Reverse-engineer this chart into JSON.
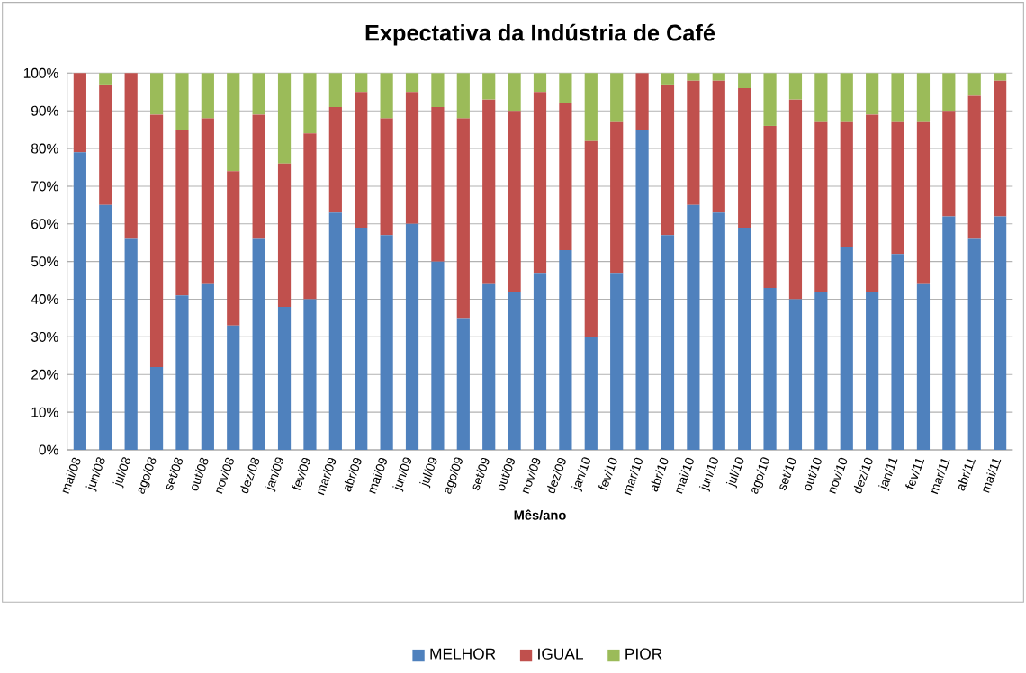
{
  "chart_data": {
    "type": "bar",
    "stacked": true,
    "title": "Expectativa da Indústria de Café",
    "xlabel": "Mês/ano",
    "categories": [
      "mai/08",
      "jun/08",
      "jul/08",
      "ago/08",
      "set/08",
      "out/08",
      "nov/08",
      "dez/08",
      "jan/09",
      "fev/09",
      "mar/09",
      "abr/09",
      "mai/09",
      "jun/09",
      "jul/09",
      "ago/09",
      "set/09",
      "out/09",
      "nov/09",
      "dez/09",
      "jan/10",
      "fev/10",
      "mar/10",
      "abr/10",
      "mai/10",
      "jun/10",
      "jul/10",
      "ago/10",
      "set/10",
      "out/10",
      "nov/10",
      "dez/10",
      "jan/11",
      "fev/11",
      "mar/11",
      "abr/11",
      "mai/11"
    ],
    "series": [
      {
        "name": "MELHOR",
        "color": "#4f81bd",
        "values": [
          79,
          65,
          56,
          22,
          41,
          44,
          33,
          56,
          38,
          40,
          63,
          59,
          57,
          60,
          50,
          35,
          44,
          42,
          47,
          53,
          30,
          47,
          85,
          57,
          65,
          63,
          59,
          43,
          40,
          42,
          54,
          42,
          52,
          44,
          62,
          56,
          62
        ]
      },
      {
        "name": "IGUAL",
        "color": "#c0504d",
        "values": [
          21,
          32,
          44,
          67,
          44,
          44,
          41,
          33,
          38,
          44,
          28,
          36,
          31,
          35,
          41,
          53,
          49,
          48,
          48,
          39,
          52,
          40,
          15,
          40,
          33,
          35,
          37,
          43,
          53,
          45,
          33,
          47,
          35,
          43,
          28,
          38,
          36
        ]
      },
      {
        "name": "PIOR",
        "color": "#9bbb59",
        "values": [
          0,
          3,
          0,
          11,
          15,
          12,
          26,
          11,
          24,
          16,
          9,
          5,
          12,
          5,
          9,
          12,
          7,
          10,
          5,
          8,
          18,
          13,
          0,
          3,
          2,
          2,
          4,
          14,
          7,
          13,
          13,
          11,
          13,
          13,
          10,
          6,
          2
        ]
      }
    ],
    "ylim": [
      0,
      100
    ],
    "yticks": [
      {
        "value": 0,
        "label": "0%"
      },
      {
        "value": 10,
        "label": "10%"
      },
      {
        "value": 20,
        "label": "20%"
      },
      {
        "value": 30,
        "label": "30%"
      },
      {
        "value": 40,
        "label": "40%"
      },
      {
        "value": 50,
        "label": "50%"
      },
      {
        "value": 60,
        "label": "60%"
      },
      {
        "value": 70,
        "label": "70%"
      },
      {
        "value": 80,
        "label": "80%"
      },
      {
        "value": 90,
        "label": "90%"
      },
      {
        "value": 100,
        "label": "100%"
      }
    ],
    "grid": "y",
    "legend": "bottom"
  }
}
